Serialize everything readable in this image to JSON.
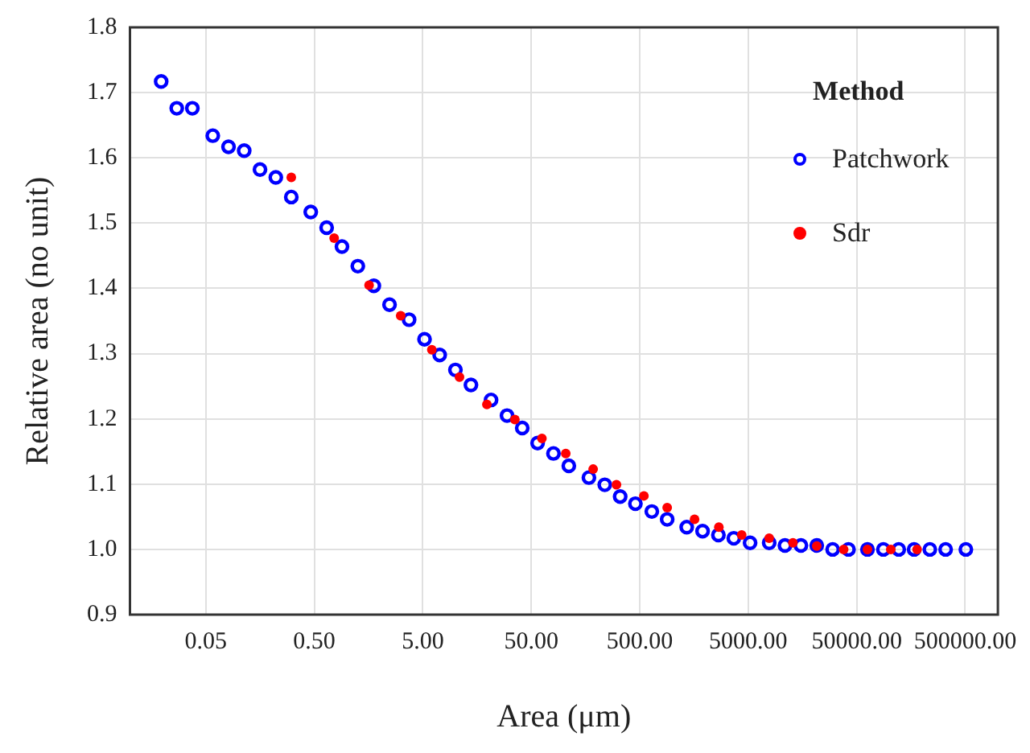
{
  "chart_data": {
    "type": "scatter",
    "xlabel": "Area (μm)",
    "ylabel": "Relative area (no unit)",
    "legend_title": "Method",
    "log": "x",
    "grid": true,
    "legend": "top right",
    "xlim": [
      0.01,
      1000000
    ],
    "xticks": [
      {
        "value": 0.05,
        "label": "0.05"
      },
      {
        "value": 0.5,
        "label": "0.50"
      },
      {
        "value": 5,
        "label": "5.00"
      },
      {
        "value": 50,
        "label": "50.00"
      },
      {
        "value": 500,
        "label": "500.00"
      },
      {
        "value": 5000,
        "label": "5000.00"
      },
      {
        "value": 50000,
        "label": "50000.00"
      },
      {
        "value": 500000,
        "label": "500000.00"
      }
    ],
    "ylim": [
      0.9,
      1.8
    ],
    "yticks": [
      0.9,
      {
        "value": 1,
        "label": "1.0"
      },
      1.1,
      1.2,
      1.3,
      1.4,
      1.5,
      1.6,
      1.7,
      1.8
    ],
    "series": [
      {
        "name": "Patchwork",
        "color": "#0000ff",
        "marker": "circle",
        "x": [
          0.0194,
          0.027,
          0.0376,
          0.058,
          0.081,
          0.113,
          0.158,
          0.221,
          0.307,
          0.464,
          0.65,
          0.9,
          1.26,
          1.77,
          2.47,
          3.74,
          5.19,
          7.16,
          10.0,
          13.9,
          21.3,
          29.9,
          41.3,
          57.2,
          80.1,
          111,
          170,
          238,
          330,
          456,
          646,
          895,
          1355,
          1897,
          2655,
          3680,
          5200,
          7800,
          10900,
          15300,
          21400,
          30000,
          42000,
          62800,
          88000,
          122000,
          169000,
          236000,
          330000,
          507000
        ],
        "values": [
          1.717,
          1.676,
          1.676,
          1.634,
          1.617,
          1.611,
          1.582,
          1.57,
          1.54,
          1.517,
          1.493,
          1.464,
          1.434,
          1.404,
          1.375,
          1.352,
          1.322,
          1.298,
          1.275,
          1.252,
          1.229,
          1.205,
          1.186,
          1.163,
          1.147,
          1.128,
          1.11,
          1.099,
          1.081,
          1.07,
          1.058,
          1.046,
          1.034,
          1.028,
          1.022,
          1.017,
          1.01,
          1.01,
          1.006,
          1.006,
          1.006,
          1.0,
          1.0,
          1.0,
          1.0,
          1.0,
          1.0,
          1.0,
          1.0,
          1.0
        ]
      },
      {
        "name": "Sdr",
        "color": "#ff0000",
        "marker": "circle",
        "x": [
          0.307,
          0.762,
          1.6,
          3.13,
          6.06,
          10.9,
          19.5,
          35.3,
          62.7,
          104,
          186,
          305,
          546,
          895,
          1600,
          2680,
          4350,
          7800,
          12900,
          21400,
          37900,
          62800,
          103000,
          180000
        ],
        "values": [
          1.57,
          1.477,
          1.405,
          1.358,
          1.306,
          1.264,
          1.222,
          1.199,
          1.17,
          1.147,
          1.123,
          1.099,
          1.082,
          1.064,
          1.046,
          1.034,
          1.022,
          1.017,
          1.01,
          1.005,
          1.0,
          1.0,
          1.0,
          1.0
        ]
      }
    ]
  }
}
